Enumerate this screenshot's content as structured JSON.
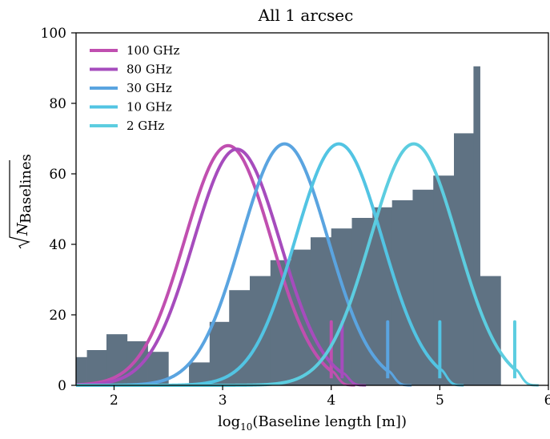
{
  "chart_data": {
    "type": "histogram-with-lines",
    "title": "All 1 arcsec",
    "xlabel_prefix": "log",
    "xlabel_sub": "10",
    "xlabel_rest": "(Baseline length [m])",
    "ylabel_base": "N",
    "ylabel_sub": "Baselines",
    "xlim": [
      1.65,
      6.0
    ],
    "ylim": [
      0,
      100
    ],
    "xticks": [
      2,
      3,
      4,
      5,
      6
    ],
    "yticks": [
      0,
      20,
      40,
      60,
      80,
      100
    ],
    "histogram": {
      "color": "#5f7283",
      "bins": [
        {
          "x0": 1.65,
          "x1": 1.75,
          "value": 8
        },
        {
          "x0": 1.75,
          "x1": 1.93,
          "value": 10
        },
        {
          "x0": 1.93,
          "x1": 2.12,
          "value": 14.5
        },
        {
          "x0": 2.12,
          "x1": 2.31,
          "value": 12.5
        },
        {
          "x0": 2.31,
          "x1": 2.5,
          "value": 9.5
        },
        {
          "x0": 2.5,
          "x1": 2.69,
          "value": 0
        },
        {
          "x0": 2.69,
          "x1": 2.88,
          "value": 6.5
        },
        {
          "x0": 2.88,
          "x1": 3.06,
          "value": 18
        },
        {
          "x0": 3.06,
          "x1": 3.25,
          "value": 27
        },
        {
          "x0": 3.25,
          "x1": 3.44,
          "value": 31
        },
        {
          "x0": 3.44,
          "x1": 3.63,
          "value": 35.5
        },
        {
          "x0": 3.63,
          "x1": 3.81,
          "value": 38.5
        },
        {
          "x0": 3.81,
          "x1": 4.0,
          "value": 42
        },
        {
          "x0": 4.0,
          "x1": 4.19,
          "value": 44.5
        },
        {
          "x0": 4.19,
          "x1": 4.38,
          "value": 47.5
        },
        {
          "x0": 4.38,
          "x1": 4.56,
          "value": 50.5
        },
        {
          "x0": 4.56,
          "x1": 4.75,
          "value": 52.5
        },
        {
          "x0": 4.75,
          "x1": 4.94,
          "value": 55.5
        },
        {
          "x0": 4.94,
          "x1": 5.13,
          "value": 59.5
        },
        {
          "x0": 5.13,
          "x1": 5.31,
          "value": 71.5
        },
        {
          "x0": 5.31,
          "x1": 5.37,
          "value": 90.5
        },
        {
          "x0": 5.37,
          "x1": 5.56,
          "value": 31
        }
      ]
    },
    "series": [
      {
        "name": "100 GHz",
        "color": "#c04fb0",
        "peak_x": 3.05,
        "peak_y": 68,
        "sigma": 0.4,
        "cutoff_x": 4.0,
        "cutoff_y": 18
      },
      {
        "name": "80 GHz",
        "color": "#a64cbd",
        "peak_x": 3.13,
        "peak_y": 67,
        "sigma": 0.4,
        "cutoff_x": 4.1,
        "cutoff_y": 18
      },
      {
        "name": "30 GHz",
        "color": "#5aa4e0",
        "peak_x": 3.57,
        "peak_y": 68.5,
        "sigma": 0.4,
        "cutoff_x": 4.52,
        "cutoff_y": 18
      },
      {
        "name": "10 GHz",
        "color": "#52c4e3",
        "peak_x": 4.07,
        "peak_y": 68.5,
        "sigma": 0.4,
        "cutoff_x": 5.0,
        "cutoff_y": 18
      },
      {
        "name": "2 GHz",
        "color": "#5ccde0",
        "peak_x": 4.76,
        "peak_y": 68.5,
        "sigma": 0.4,
        "cutoff_x": 5.69,
        "cutoff_y": 18
      }
    ],
    "legend_position": "top-left",
    "grid": false
  }
}
